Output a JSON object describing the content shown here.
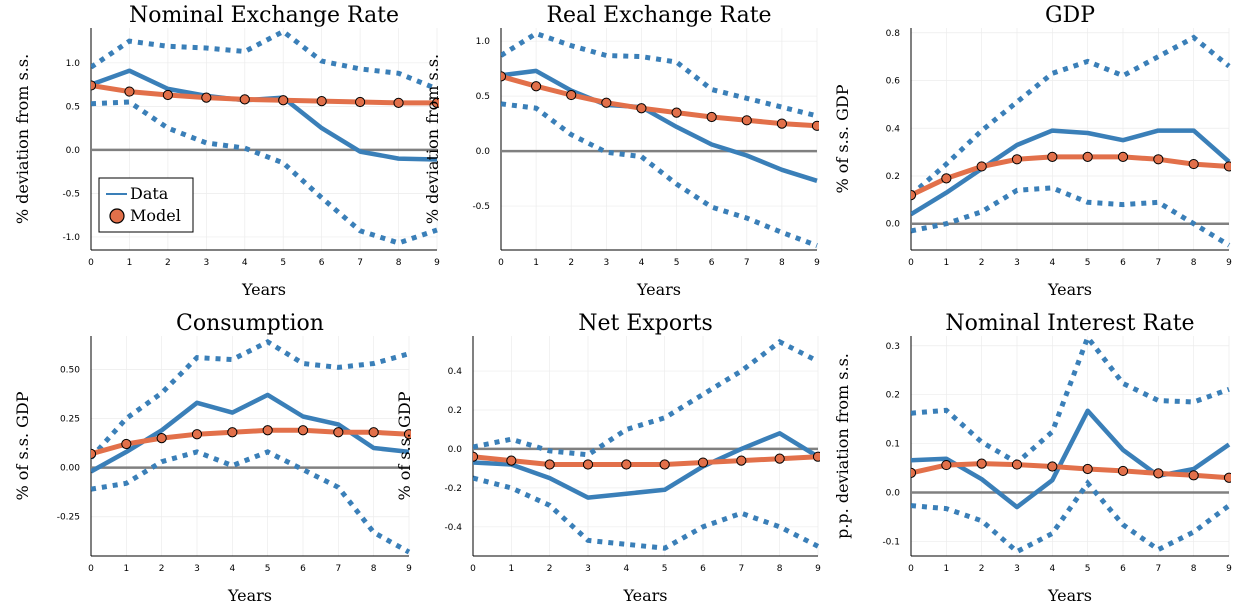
{
  "colors": {
    "data": "#3a7fb8",
    "model": "#e2704a",
    "zero": "#808080",
    "grid": "#ececec",
    "marker_edge": "#000000"
  },
  "chart_data": [
    {
      "type": "line",
      "title": "Nominal Exchange Rate",
      "xlabel": "Years",
      "ylabel": "% deviation from s.s.",
      "x": [
        0,
        1,
        2,
        3,
        4,
        5,
        6,
        7,
        8,
        9
      ],
      "xlim": [
        0,
        9
      ],
      "ylim": [
        -1.15,
        1.4
      ],
      "yticks": [
        -1.0,
        -0.5,
        0.0,
        0.5,
        1.0
      ],
      "ytick_labels": [
        "-1.0",
        "-0.5",
        "0.0",
        "0.5",
        "1.0"
      ],
      "legend": {
        "position": "bottom-left",
        "entries": [
          "Data",
          "Model"
        ]
      },
      "series": [
        {
          "name": "Data",
          "style": "solid",
          "values": [
            0.75,
            0.91,
            0.7,
            0.62,
            0.57,
            0.6,
            0.25,
            -0.02,
            -0.1,
            -0.11
          ]
        },
        {
          "name": "Data",
          "style": "dotted",
          "values": [
            0.95,
            1.25,
            1.19,
            1.17,
            1.13,
            1.36,
            1.02,
            0.93,
            0.88,
            0.7
          ]
        },
        {
          "name": "Data",
          "style": "dotted",
          "values": [
            0.53,
            0.55,
            0.25,
            0.08,
            0.02,
            -0.15,
            -0.55,
            -0.93,
            -1.07,
            -0.92
          ]
        },
        {
          "name": "Model",
          "style": "markers",
          "values": [
            0.74,
            0.67,
            0.63,
            0.6,
            0.58,
            0.57,
            0.56,
            0.55,
            0.54,
            0.54
          ]
        }
      ]
    },
    {
      "type": "line",
      "title": "Real Exchange Rate",
      "xlabel": "Years",
      "ylabel": "% deviation from s.s.",
      "x": [
        0,
        1,
        2,
        3,
        4,
        5,
        6,
        7,
        8,
        9
      ],
      "xlim": [
        0,
        9
      ],
      "ylim": [
        -0.9,
        1.12
      ],
      "yticks": [
        -0.5,
        0.0,
        0.5,
        1.0
      ],
      "ytick_labels": [
        "-0.5",
        "0.0",
        "0.5",
        "1.0"
      ],
      "series": [
        {
          "name": "Data",
          "style": "solid",
          "values": [
            0.69,
            0.73,
            0.55,
            0.42,
            0.4,
            0.22,
            0.06,
            -0.04,
            -0.17,
            -0.27
          ]
        },
        {
          "name": "Data",
          "style": "dotted",
          "values": [
            0.87,
            1.07,
            0.96,
            0.87,
            0.86,
            0.81,
            0.56,
            0.48,
            0.4,
            0.32
          ]
        },
        {
          "name": "Data",
          "style": "dotted",
          "values": [
            0.43,
            0.39,
            0.15,
            -0.01,
            -0.05,
            -0.3,
            -0.51,
            -0.61,
            -0.74,
            -0.86
          ]
        },
        {
          "name": "Model",
          "style": "markers",
          "values": [
            0.68,
            0.59,
            0.51,
            0.44,
            0.39,
            0.35,
            0.31,
            0.28,
            0.25,
            0.23
          ]
        }
      ]
    },
    {
      "type": "line",
      "title": "GDP",
      "xlabel": "Years",
      "ylabel": "% of s.s. GDP",
      "x": [
        0,
        1,
        2,
        3,
        4,
        5,
        6,
        7,
        8,
        9
      ],
      "xlim": [
        0,
        9
      ],
      "ylim": [
        -0.11,
        0.82
      ],
      "yticks": [
        0.0,
        0.2,
        0.4,
        0.6,
        0.8
      ],
      "ytick_labels": [
        "0.0",
        "0.2",
        "0.4",
        "0.6",
        "0.8"
      ],
      "series": [
        {
          "name": "Data",
          "style": "solid",
          "values": [
            0.04,
            0.13,
            0.23,
            0.33,
            0.39,
            0.38,
            0.35,
            0.39,
            0.39,
            0.26
          ]
        },
        {
          "name": "Data",
          "style": "dotted",
          "values": [
            0.12,
            0.25,
            0.39,
            0.51,
            0.63,
            0.68,
            0.62,
            0.7,
            0.78,
            0.66
          ]
        },
        {
          "name": "Data",
          "style": "dotted",
          "values": [
            -0.03,
            0.0,
            0.05,
            0.14,
            0.15,
            0.09,
            0.08,
            0.09,
            0.0,
            -0.09
          ]
        },
        {
          "name": "Model",
          "style": "markers",
          "values": [
            0.12,
            0.19,
            0.24,
            0.27,
            0.28,
            0.28,
            0.28,
            0.27,
            0.25,
            0.24
          ]
        }
      ]
    },
    {
      "type": "line",
      "title": "Consumption",
      "xlabel": "Years",
      "ylabel": "% of s.s. GDP",
      "x": [
        0,
        1,
        2,
        3,
        4,
        5,
        6,
        7,
        8,
        9
      ],
      "xlim": [
        0,
        9
      ],
      "ylim": [
        -0.45,
        0.67
      ],
      "yticks": [
        -0.25,
        0.0,
        0.25,
        0.5
      ],
      "ytick_labels": [
        "-0.25",
        "0.00",
        "0.25",
        "0.50"
      ],
      "series": [
        {
          "name": "Data",
          "style": "solid",
          "values": [
            -0.02,
            0.08,
            0.19,
            0.33,
            0.28,
            0.37,
            0.26,
            0.22,
            0.1,
            0.08
          ]
        },
        {
          "name": "Data",
          "style": "dotted",
          "values": [
            0.05,
            0.25,
            0.38,
            0.56,
            0.55,
            0.64,
            0.53,
            0.51,
            0.53,
            0.58
          ]
        },
        {
          "name": "Data",
          "style": "dotted",
          "values": [
            -0.11,
            -0.08,
            0.03,
            0.08,
            0.01,
            0.08,
            -0.01,
            -0.1,
            -0.33,
            -0.43
          ]
        },
        {
          "name": "Model",
          "style": "markers",
          "values": [
            0.07,
            0.12,
            0.15,
            0.17,
            0.18,
            0.19,
            0.19,
            0.18,
            0.18,
            0.17
          ]
        }
      ]
    },
    {
      "type": "line",
      "title": "Net Exports",
      "xlabel": "Years",
      "ylabel": "% of s.s. GDP",
      "x": [
        0,
        1,
        2,
        3,
        4,
        5,
        6,
        7,
        8,
        9
      ],
      "xlim": [
        0,
        9
      ],
      "ylim": [
        -0.55,
        0.58
      ],
      "yticks": [
        -0.4,
        -0.2,
        0.0,
        0.2,
        0.4
      ],
      "ytick_labels": [
        "-0.4",
        "-0.2",
        "0.0",
        "0.2",
        "0.4"
      ],
      "series": [
        {
          "name": "Data",
          "style": "solid",
          "values": [
            -0.07,
            -0.08,
            -0.15,
            -0.25,
            -0.23,
            -0.21,
            -0.09,
            0.0,
            0.08,
            -0.04
          ]
        },
        {
          "name": "Data",
          "style": "dotted",
          "values": [
            0.01,
            0.05,
            -0.01,
            -0.03,
            0.1,
            0.16,
            0.28,
            0.4,
            0.55,
            0.45
          ]
        },
        {
          "name": "Data",
          "style": "dotted",
          "values": [
            -0.15,
            -0.2,
            -0.29,
            -0.47,
            -0.49,
            -0.51,
            -0.4,
            -0.33,
            -0.4,
            -0.5
          ]
        },
        {
          "name": "Model",
          "style": "markers",
          "values": [
            -0.04,
            -0.06,
            -0.08,
            -0.08,
            -0.08,
            -0.08,
            -0.07,
            -0.06,
            -0.05,
            -0.04
          ]
        }
      ]
    },
    {
      "type": "line",
      "title": "Nominal Interest Rate",
      "xlabel": "Years",
      "ylabel": "p.p. deviation from s.s.",
      "x": [
        0,
        1,
        2,
        3,
        4,
        5,
        6,
        7,
        8,
        9
      ],
      "xlim": [
        0,
        9
      ],
      "ylim": [
        -0.13,
        0.32
      ],
      "yticks": [
        -0.1,
        0.0,
        0.1,
        0.2,
        0.3
      ],
      "ytick_labels": [
        "-0.1",
        "0.0",
        "0.1",
        "0.2",
        "0.3"
      ],
      "series": [
        {
          "name": "Data",
          "style": "solid",
          "values": [
            0.066,
            0.069,
            0.027,
            -0.03,
            0.025,
            0.167,
            0.087,
            0.034,
            0.048,
            0.098
          ]
        },
        {
          "name": "Data",
          "style": "dotted",
          "values": [
            0.162,
            0.168,
            0.103,
            0.061,
            0.124,
            0.317,
            0.223,
            0.188,
            0.185,
            0.211
          ]
        },
        {
          "name": "Data",
          "style": "dotted",
          "values": [
            -0.027,
            -0.033,
            -0.058,
            -0.121,
            -0.084,
            0.019,
            -0.066,
            -0.117,
            -0.081,
            -0.027
          ]
        },
        {
          "name": "Model",
          "style": "markers",
          "values": [
            0.04,
            0.056,
            0.059,
            0.057,
            0.053,
            0.048,
            0.044,
            0.039,
            0.035,
            0.03
          ]
        }
      ]
    }
  ]
}
